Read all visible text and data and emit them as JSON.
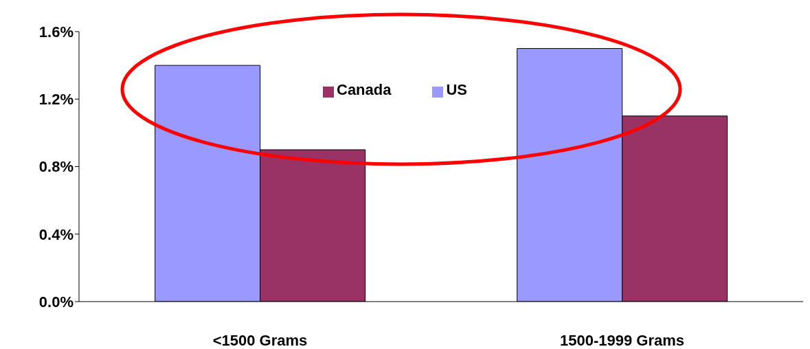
{
  "chart_data": {
    "type": "bar",
    "categories": [
      "<1500 Grams",
      "1500-1999  Grams"
    ],
    "series": [
      {
        "name": "US",
        "color": "#9999ff",
        "values": [
          1.4,
          1.5
        ]
      },
      {
        "name": "Canada",
        "color": "#993366",
        "values": [
          0.9,
          1.1
        ]
      }
    ],
    "ylim": [
      0,
      1.6
    ],
    "yticks": [
      {
        "value": 0,
        "label": "0.0%"
      },
      {
        "value": 0.4,
        "label": "0.4%"
      },
      {
        "value": 0.8,
        "label": "0.8%"
      },
      {
        "value": 1.2,
        "label": "1.2%"
      },
      {
        "value": 1.6,
        "label": "1.6%"
      }
    ],
    "grid": false,
    "legend": "top"
  }
}
